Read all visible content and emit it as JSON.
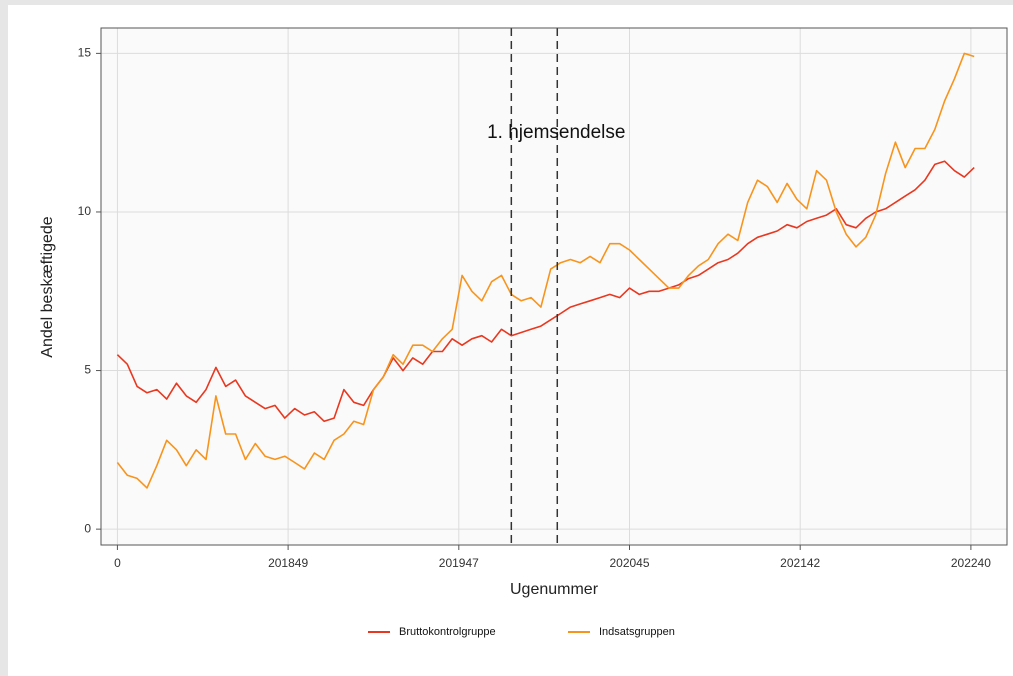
{
  "chart_data": {
    "type": "line",
    "x_label": "Ugenummer",
    "y_label": "Andel beskæftigede",
    "x": [
      0,
      3,
      6,
      9,
      12,
      15,
      18,
      21,
      24,
      27,
      30,
      33,
      36,
      39,
      42,
      45,
      48,
      51,
      54,
      57,
      60,
      63,
      66,
      69,
      72,
      75,
      78,
      81,
      84,
      87,
      90,
      93,
      96,
      99,
      102,
      105,
      108,
      111,
      114,
      117,
      120,
      123,
      126,
      129,
      132,
      135,
      138,
      141,
      144,
      147,
      150,
      153,
      156,
      159,
      162,
      165,
      168,
      171,
      174,
      177,
      180,
      183,
      186,
      189,
      192,
      195,
      198,
      201,
      204,
      207,
      210,
      213,
      216,
      219,
      222,
      225,
      228,
      231,
      234,
      237,
      240,
      243,
      246,
      249,
      252,
      255,
      258,
      261
    ],
    "series": [
      {
        "name": "Bruttokontrolgruppe",
        "color": "#e8381f",
        "values": [
          5.5,
          5.2,
          4.5,
          4.3,
          4.4,
          4.1,
          4.6,
          4.2,
          4.0,
          4.4,
          5.1,
          4.5,
          4.7,
          4.2,
          4.0,
          3.8,
          3.9,
          3.5,
          3.8,
          3.6,
          3.7,
          3.4,
          3.5,
          4.4,
          4.0,
          3.9,
          4.4,
          4.8,
          5.4,
          5.0,
          5.4,
          5.2,
          5.6,
          5.6,
          6.0,
          5.8,
          6.0,
          6.1,
          5.9,
          6.3,
          6.1,
          6.2,
          6.3,
          6.4,
          6.6,
          6.8,
          7.0,
          7.1,
          7.2,
          7.3,
          7.4,
          7.3,
          7.6,
          7.4,
          7.5,
          7.5,
          7.6,
          7.7,
          7.9,
          8.0,
          8.2,
          8.4,
          8.5,
          8.7,
          9.0,
          9.2,
          9.3,
          9.4,
          9.6,
          9.5,
          9.7,
          9.8,
          9.9,
          10.1,
          9.6,
          9.5,
          9.8,
          10.0,
          10.1,
          10.3,
          10.5,
          10.7,
          11.0,
          11.5,
          11.6,
          11.3,
          11.1,
          11.4
        ]
      },
      {
        "name": "Indsatsgruppen",
        "color": "#f7941d",
        "values": [
          2.1,
          1.7,
          1.6,
          1.3,
          2.0,
          2.8,
          2.5,
          2.0,
          2.5,
          2.2,
          4.2,
          3.0,
          3.0,
          2.2,
          2.7,
          2.3,
          2.2,
          2.3,
          2.1,
          1.9,
          2.4,
          2.2,
          2.8,
          3.0,
          3.4,
          3.3,
          4.4,
          4.8,
          5.5,
          5.2,
          5.8,
          5.8,
          5.6,
          6.0,
          6.3,
          8.0,
          7.5,
          7.2,
          7.8,
          8.0,
          7.4,
          7.2,
          7.3,
          7.0,
          8.2,
          8.4,
          8.5,
          8.4,
          8.6,
          8.4,
          9.0,
          9.0,
          8.8,
          8.5,
          8.2,
          7.9,
          7.6,
          7.6,
          8.0,
          8.3,
          8.5,
          9.0,
          9.3,
          9.1,
          10.3,
          11.0,
          10.8,
          10.3,
          10.9,
          10.4,
          10.1,
          11.3,
          11.0,
          10.0,
          9.3,
          8.9,
          9.2,
          9.9,
          11.2,
          12.2,
          11.4,
          12.0,
          12.0,
          12.6,
          13.5,
          14.2,
          15.0,
          14.9
        ]
      }
    ],
    "xlim": [
      -5,
      271
    ],
    "xticks": [
      0,
      {
        "value": 52,
        "label": "201849"
      },
      {
        "value": 104,
        "label": "201947"
      },
      {
        "value": 156,
        "label": "202045"
      },
      {
        "value": 208,
        "label": "202142"
      },
      {
        "value": 260,
        "label": "202240"
      }
    ],
    "ylim": [
      -0.5,
      15.8
    ],
    "yticks": [
      0,
      5,
      10,
      15
    ],
    "grid": true,
    "vlines": [
      120,
      134
    ],
    "annotation": "1. hjemsendelse",
    "legend": "bottom"
  }
}
